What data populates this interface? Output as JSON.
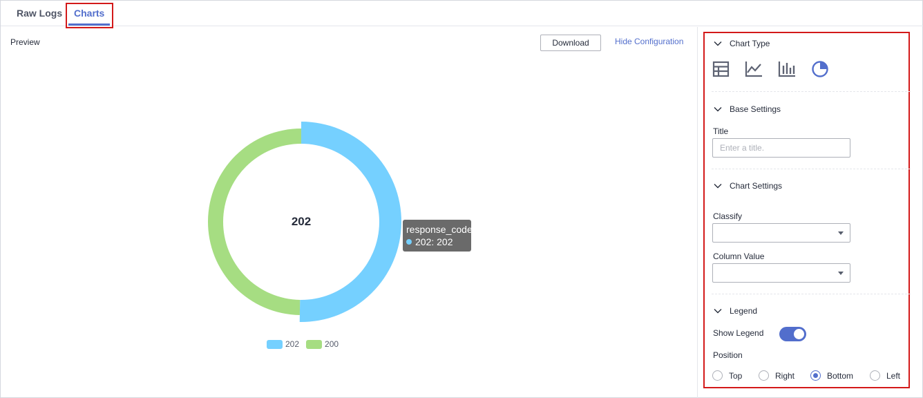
{
  "tabs": [
    {
      "label": "Raw Logs",
      "active": false
    },
    {
      "label": "Charts",
      "active": true
    }
  ],
  "preview": {
    "label": "Preview",
    "download_label": "Download",
    "hide_config_label": "Hide Configuration"
  },
  "chart_data": {
    "type": "pie",
    "donut": true,
    "center_label": "202",
    "categories": [
      "202",
      "200"
    ],
    "values": [
      202,
      200
    ],
    "colors": [
      "#75d0ff",
      "#a6dd82"
    ],
    "legend_position": "bottom",
    "tooltip": {
      "title": "response_code",
      "entry": "202: 202"
    }
  },
  "config": {
    "chart_type": {
      "heading": "Chart Type",
      "icons": [
        "table-icon",
        "line-chart-icon",
        "bar-chart-icon",
        "pie-chart-icon"
      ],
      "selected": "pie-chart-icon"
    },
    "base_settings": {
      "heading": "Base Settings",
      "title_label": "Title",
      "title_value": "",
      "title_placeholder": "Enter a title."
    },
    "chart_settings": {
      "heading": "Chart Settings",
      "classify_label": "Classify",
      "classify_value": "",
      "column_value_label": "Column Value",
      "column_value_value": ""
    },
    "legend": {
      "heading": "Legend",
      "show_legend_label": "Show Legend",
      "show_legend": true,
      "position_label": "Position",
      "positions": [
        "Top",
        "Right",
        "Bottom",
        "Left"
      ],
      "selected_position": "Bottom"
    }
  },
  "colors": {
    "accent": "#526ecc",
    "highlight_box": "#d31919"
  }
}
